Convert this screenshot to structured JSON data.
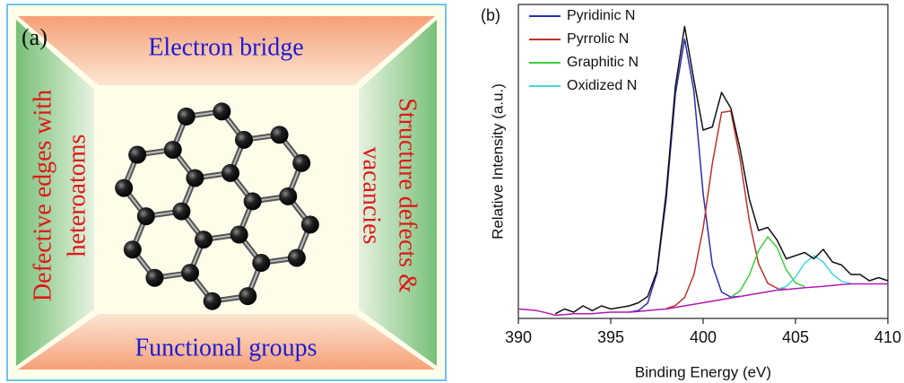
{
  "panel_a": {
    "label": "(a)",
    "top": "Electron bridge",
    "bottom": "Functional groups",
    "left": [
      "Defective edges with",
      "heteroatoms"
    ],
    "right": [
      "Structure defects &",
      "vacancies"
    ]
  },
  "chart_data": {
    "type": "line",
    "label": "(b)",
    "x_label": "Binding Energy (eV)",
    "y_label": "Relative Intensity (a.u.)",
    "xlim": [
      390,
      410
    ],
    "xticks": [
      390,
      395,
      400,
      405,
      410
    ],
    "ylim": [
      0,
      100
    ],
    "x": [
      390,
      390.5,
      391,
      391.5,
      392,
      392.5,
      393,
      393.5,
      394,
      394.5,
      395,
      395.5,
      396,
      396.5,
      397,
      397.5,
      398,
      398.5,
      399,
      399.5,
      400,
      400.5,
      401,
      401.5,
      402,
      402.5,
      403,
      403.5,
      404,
      404.5,
      405,
      405.5,
      406,
      406.5,
      407,
      407.5,
      408,
      408.5,
      409,
      409.5,
      410
    ],
    "series": [
      {
        "name": "Pyridinic N",
        "color": "#2b2bb8",
        "values": [
          null,
          null,
          null,
          null,
          null,
          null,
          null,
          null,
          null,
          null,
          null,
          null,
          2.0,
          2.5,
          4.9,
          14.3,
          37.9,
          71.5,
          89,
          72.5,
          39.9,
          17,
          8.4,
          6.8,
          7.0,
          null,
          null,
          null,
          null,
          null,
          null,
          null,
          null,
          null,
          null,
          null,
          null,
          null,
          null,
          null,
          null
        ]
      },
      {
        "name": "Pyrrolic N",
        "color": "#c0302a",
        "values": [
          null,
          null,
          null,
          null,
          null,
          null,
          null,
          null,
          null,
          null,
          null,
          null,
          null,
          null,
          null,
          null,
          3.1,
          4.1,
          6.7,
          13.9,
          28.6,
          49.3,
          65.6,
          66.1,
          50.8,
          31.1,
          17.4,
          11.2,
          9.6,
          9.3,
          null,
          null,
          null,
          null,
          null,
          null,
          null,
          null,
          null,
          null,
          null
        ]
      },
      {
        "name": "Graphitic N",
        "color": "#3ccf3c",
        "values": [
          null,
          null,
          null,
          null,
          null,
          null,
          null,
          null,
          null,
          null,
          null,
          null,
          null,
          null,
          null,
          null,
          null,
          null,
          null,
          null,
          null,
          null,
          null,
          6.8,
          8.8,
          13.8,
          21.6,
          26,
          22.6,
          15.5,
          11.3,
          10.1,
          null,
          null,
          null,
          null,
          null,
          null,
          null,
          null,
          null
        ]
      },
      {
        "name": "Oxidized N",
        "color": "#3fd6e0",
        "values": [
          null,
          null,
          null,
          null,
          null,
          null,
          null,
          null,
          null,
          null,
          null,
          null,
          null,
          null,
          null,
          null,
          null,
          null,
          null,
          null,
          null,
          null,
          null,
          null,
          null,
          null,
          null,
          null,
          9.2,
          10.2,
          13.1,
          17.6,
          20,
          18,
          14.1,
          11.8,
          11.2,
          null,
          null,
          null,
          null
        ]
      },
      {
        "color": "#b01ab0",
        "values": [
          3,
          2.8,
          2.5,
          1.8,
          1,
          1.2,
          1.5,
          1.5,
          1.5,
          1.8,
          2,
          2,
          2,
          2.2,
          2.5,
          2.8,
          3,
          3.5,
          4,
          4.5,
          5,
          5.5,
          6,
          6.5,
          7,
          7.5,
          8,
          8.5,
          9,
          9.2,
          9.5,
          9.8,
          10,
          10.2,
          10.5,
          10.8,
          11,
          11,
          11,
          11,
          11
        ]
      },
      {
        "color": "#111111",
        "values": [
          null,
          null,
          null,
          null,
          1.5,
          3,
          2,
          4,
          2.5,
          4,
          3,
          3.5,
          4,
          5,
          7,
          15,
          40,
          74,
          93,
          76,
          60,
          61,
          72,
          67,
          54,
          38,
          28,
          29,
          25,
          19,
          20,
          21,
          19,
          22,
          18,
          17,
          14,
          14,
          12,
          13,
          12
        ]
      }
    ]
  }
}
